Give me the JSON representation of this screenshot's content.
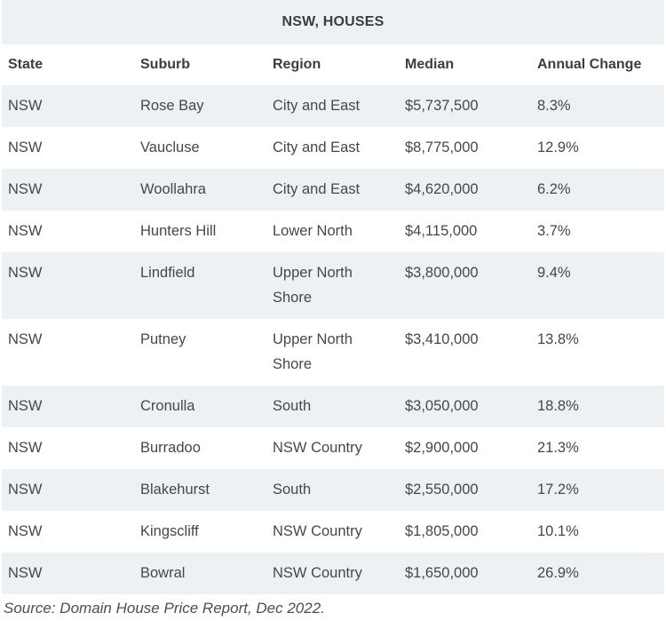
{
  "table": {
    "title": "NSW, HOUSES",
    "headers": [
      "State",
      "Suburb",
      "Region",
      "Median",
      "Annual Change"
    ],
    "rows": [
      {
        "state": "NSW",
        "suburb": "Rose Bay",
        "region": "City and East",
        "median": "$5,737,500",
        "change": "8.3%"
      },
      {
        "state": "NSW",
        "suburb": "Vaucluse",
        "region": "City and East",
        "median": "$8,775,000",
        "change": "12.9%"
      },
      {
        "state": "NSW",
        "suburb": "Woollahra",
        "region": "City and East",
        "median": "$4,620,000",
        "change": "6.2%"
      },
      {
        "state": "NSW",
        "suburb": "Hunters Hill",
        "region": "Lower North",
        "median": "$4,115,000",
        "change": "3.7%"
      },
      {
        "state": "NSW",
        "suburb": "Lindfield",
        "region": "Upper North Shore",
        "median": "$3,800,000",
        "change": "9.4%"
      },
      {
        "state": "NSW",
        "suburb": "Putney",
        "region": "Upper North Shore",
        "median": "$3,410,000",
        "change": "13.8%"
      },
      {
        "state": "NSW",
        "suburb": "Cronulla",
        "region": "South",
        "median": "$3,050,000",
        "change": "18.8%"
      },
      {
        "state": "NSW",
        "suburb": "Burradoo",
        "region": "NSW Country",
        "median": "$2,900,000",
        "change": "21.3%"
      },
      {
        "state": "NSW",
        "suburb": "Blakehurst",
        "region": "South",
        "median": "$2,550,000",
        "change": "17.2%"
      },
      {
        "state": "NSW",
        "suburb": "Kingscliff",
        "region": "NSW Country",
        "median": "$1,805,000",
        "change": "10.1%"
      },
      {
        "state": "NSW",
        "suburb": "Bowral",
        "region": "NSW Country",
        "median": "$1,650,000",
        "change": "26.9%"
      }
    ]
  },
  "source": "Source: Domain House Price Report, Dec 2022.",
  "colors": {
    "shade": "#eef1f3",
    "text": "#44484b"
  }
}
